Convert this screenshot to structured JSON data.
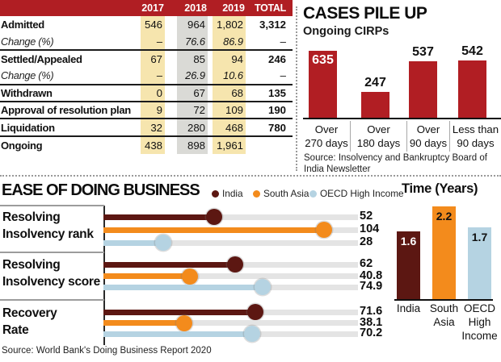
{
  "colors": {
    "header_red": "#b01e23",
    "bar_red": "#b11e23",
    "india_maroon": "#5c1712",
    "south_asia_orange": "#f38b1c",
    "oecd_blue": "#b5d3e2",
    "col_yellow": "#f6e5ae",
    "col_gray": "#dadad6",
    "track_gray": "#e4e4e4"
  },
  "table": {
    "header_columns": [
      "2017",
      "2018",
      "2019",
      "TOTAL"
    ],
    "rows": [
      {
        "label": "Admitted",
        "values": [
          "546",
          "964",
          "1,802"
        ],
        "total": "3,312"
      },
      {
        "label": "Change (%)",
        "values": [
          "–",
          "76.6",
          "86.9"
        ],
        "total": "–"
      },
      {
        "label": "Settled/Appealed",
        "values": [
          "67",
          "85",
          "94"
        ],
        "total": "246"
      },
      {
        "label": "Change (%)",
        "values": [
          "–",
          "26.9",
          "10.6"
        ],
        "total": "–"
      },
      {
        "label": "Withdrawn",
        "values": [
          "0",
          "67",
          "68"
        ],
        "total": "135"
      },
      {
        "label": "Approval of resolution plan",
        "values": [
          "9",
          "72",
          "109"
        ],
        "total": "190"
      },
      {
        "label": "Liquidation",
        "values": [
          "32",
          "280",
          "468"
        ],
        "total": "780"
      },
      {
        "label": "Ongoing",
        "values": [
          "438",
          "898",
          "1,961"
        ],
        "total": ""
      }
    ]
  },
  "cases": {
    "title": "CASES PILE UP",
    "subtitle": "Ongoing CIRPs",
    "bars": [
      {
        "value": 635,
        "label_lines": [
          "Over",
          "270 days"
        ]
      },
      {
        "value": 247,
        "label_lines": [
          "Over",
          "180 days"
        ]
      },
      {
        "value": 537,
        "label_lines": [
          "Over",
          "90 days"
        ]
      },
      {
        "value": 542,
        "label_lines": [
          "Less than",
          "90 days"
        ]
      }
    ],
    "source": "Source: Insolvency and Bankruptcy Board of India Newsletter"
  },
  "ease": {
    "title": "EASE OF DOING BUSINESS",
    "legend": [
      {
        "name": "India"
      },
      {
        "name": "South Asia"
      },
      {
        "name": "OECD High Income"
      }
    ],
    "groups": [
      {
        "label": "Resolving Insolvency rank",
        "label_lines": [
          "Resolving",
          "Insolvency rank"
        ],
        "values": [
          52,
          104,
          28
        ]
      },
      {
        "label": "Resolving Insolvency score",
        "label_lines": [
          "Resolving",
          "Insolvency score"
        ],
        "values": [
          62,
          40.8,
          74.9
        ]
      },
      {
        "label": "Recovery Rate",
        "label_lines": [
          "Recovery",
          "Rate"
        ],
        "values": [
          71.6,
          38.1,
          70.2
        ]
      }
    ],
    "source": "Source: World Bank's Doing Business Report 2020"
  },
  "time": {
    "title": "Time (Years)",
    "bars": [
      {
        "label": "India",
        "label_lines": [
          "India"
        ],
        "value": 1.6
      },
      {
        "label": "South Asia",
        "label_lines": [
          "South",
          "Asia"
        ],
        "value": 2.2
      },
      {
        "label": "OECD High Income",
        "label_lines": [
          "OECD",
          "High",
          "Income"
        ],
        "value": 1.7
      }
    ]
  },
  "chart_data": [
    {
      "type": "table",
      "columns": [
        "",
        "2017",
        "2018",
        "2019",
        "TOTAL"
      ],
      "rows": [
        [
          "Admitted",
          "546",
          "964",
          "1,802",
          "3,312"
        ],
        [
          "Change (%)",
          "–",
          "76.6",
          "86.9",
          "–"
        ],
        [
          "Settled/Appealed",
          "67",
          "85",
          "94",
          "246"
        ],
        [
          "Change (%)",
          "–",
          "26.9",
          "10.6",
          "–"
        ],
        [
          "Withdrawn",
          "0",
          "67",
          "68",
          "135"
        ],
        [
          "Approval of resolution plan",
          "9",
          "72",
          "109",
          "190"
        ],
        [
          "Liquidation",
          "32",
          "280",
          "468",
          "780"
        ],
        [
          "Ongoing",
          "438",
          "898",
          "1,961",
          ""
        ]
      ]
    },
    {
      "type": "bar",
      "title": "CASES PILE UP",
      "subtitle": "Ongoing CIRPs",
      "categories": [
        "Over 270 days",
        "Over 180 days",
        "Over 90 days",
        "Less than 90 days"
      ],
      "values": [
        635,
        247,
        537,
        542
      ],
      "source": "Source: Insolvency and Bankruptcy Board of India Newsletter"
    },
    {
      "type": "scatter",
      "title": "EASE OF DOING BUSINESS",
      "categories": [
        "Resolving Insolvency rank",
        "Resolving Insolvency score",
        "Recovery Rate"
      ],
      "series": [
        {
          "name": "India",
          "values": [
            52,
            62,
            71.6
          ]
        },
        {
          "name": "South Asia",
          "values": [
            104,
            40.8,
            38.1
          ]
        },
        {
          "name": "OECD High Income",
          "values": [
            28,
            74.9,
            70.2
          ]
        }
      ],
      "xlim": [
        0,
        120
      ],
      "legend_position": "top",
      "source": "Source: World Bank's Doing Business Report 2020"
    },
    {
      "type": "bar",
      "title": "Time (Years)",
      "categories": [
        "India",
        "South Asia",
        "OECD High Income"
      ],
      "values": [
        1.6,
        2.2,
        1.7
      ]
    }
  ]
}
